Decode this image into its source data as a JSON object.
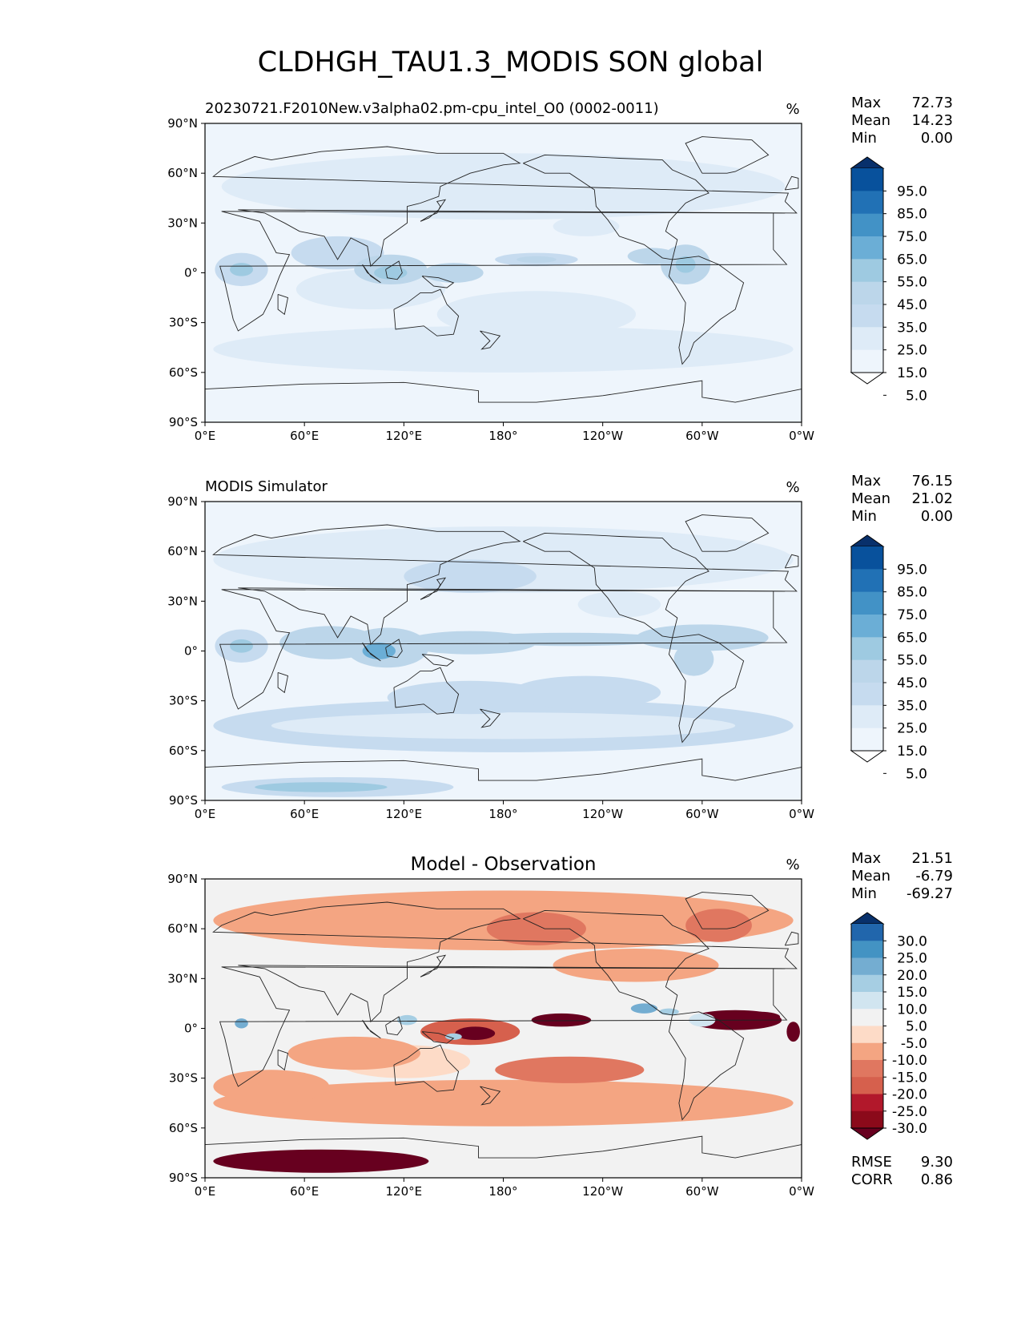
{
  "figure": {
    "title": "CLDHGH_TAU1.3_MODIS SON global"
  },
  "chart_data": [
    {
      "type": "heatmap",
      "panel": "test",
      "title": "20230721.F2010New.v3alpha02.pm-cpu_intel_O0 (0002-0011)",
      "title_align": "left",
      "units": "%",
      "stats": [
        {
          "label": "Max",
          "value": "72.73"
        },
        {
          "label": "Mean",
          "value": "14.23"
        },
        {
          "label": "Min",
          "value": "0.00"
        }
      ],
      "colorbar": {
        "labels": [
          "95.0",
          "85.0",
          "75.0",
          "65.0",
          "55.0",
          "45.0",
          "35.0",
          "25.0",
          "15.0",
          "5.0"
        ],
        "colors": [
          "#08306b",
          "#08519c",
          "#2171b5",
          "#4292c6",
          "#6baed6",
          "#9ecae1",
          "#bcd6ea",
          "#c6dbef",
          "#deebf7",
          "#eef5fc",
          "#ffffff"
        ]
      },
      "xticks": [
        "0°E",
        "60°E",
        "120°E",
        "180°",
        "120°W",
        "60°W",
        "0°W"
      ],
      "yticks": [
        "90°N",
        "60°N",
        "30°N",
        "0°",
        "30°S",
        "60°S",
        "90°S"
      ],
      "xlim": [
        0,
        360
      ],
      "ylim": [
        -90,
        90
      ]
    },
    {
      "type": "heatmap",
      "panel": "reference",
      "title": "MODIS Simulator",
      "title_align": "left",
      "units": "%",
      "stats": [
        {
          "label": "Max",
          "value": "76.15"
        },
        {
          "label": "Mean",
          "value": "21.02"
        },
        {
          "label": "Min",
          "value": "0.00"
        }
      ],
      "colorbar": {
        "labels": [
          "95.0",
          "85.0",
          "75.0",
          "65.0",
          "55.0",
          "45.0",
          "35.0",
          "25.0",
          "15.0",
          "5.0"
        ],
        "colors": [
          "#08306b",
          "#08519c",
          "#2171b5",
          "#4292c6",
          "#6baed6",
          "#9ecae1",
          "#bcd6ea",
          "#c6dbef",
          "#deebf7",
          "#eef5fc",
          "#ffffff"
        ]
      },
      "xticks": [
        "0°E",
        "60°E",
        "120°E",
        "180°",
        "120°W",
        "60°W",
        "0°W"
      ],
      "yticks": [
        "90°N",
        "60°N",
        "30°N",
        "0°",
        "30°S",
        "60°S",
        "90°S"
      ],
      "xlim": [
        0,
        360
      ],
      "ylim": [
        -90,
        90
      ]
    },
    {
      "type": "heatmap",
      "panel": "difference",
      "title": "Model - Observation",
      "title_align": "center",
      "units": "%",
      "stats": [
        {
          "label": "Max",
          "value": "21.51"
        },
        {
          "label": "Mean",
          "value": "-6.79"
        },
        {
          "label": "Min",
          "value": "-69.27"
        }
      ],
      "extra_stats": [
        {
          "label": "RMSE",
          "value": "9.30"
        },
        {
          "label": "CORR",
          "value": "0.86"
        }
      ],
      "colorbar": {
        "labels": [
          "30.0",
          "25.0",
          "20.0",
          "15.0",
          "10.0",
          "5.0",
          "-5.0",
          "-10.0",
          "-15.0",
          "-20.0",
          "-25.0",
          "-30.0"
        ],
        "colors": [
          "#08306b",
          "#2166ac",
          "#4393c3",
          "#74add1",
          "#a6cee3",
          "#d1e5f0",
          "#f2f2f2",
          "#fddbc7",
          "#f4a582",
          "#e07760",
          "#d6604d",
          "#b2182b",
          "#8b0a1a",
          "#67001f"
        ]
      },
      "xticks": [
        "0°E",
        "60°E",
        "120°E",
        "180°",
        "120°W",
        "60°W",
        "0°W"
      ],
      "yticks": [
        "90°N",
        "60°N",
        "30°N",
        "0°",
        "30°S",
        "60°S",
        "90°S"
      ],
      "xlim": [
        0,
        360
      ],
      "ylim": [
        -90,
        90
      ]
    }
  ]
}
